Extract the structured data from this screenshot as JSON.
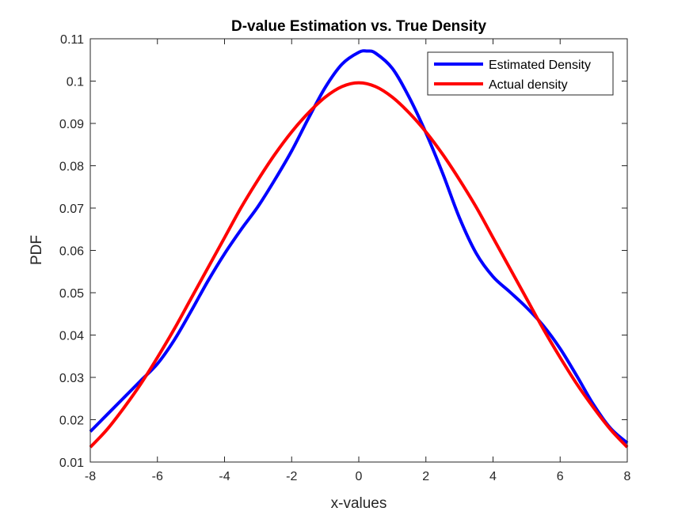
{
  "chart_data": {
    "type": "line",
    "title": "D-value Estimation vs. True Density",
    "xlabel": "x-values",
    "ylabel": "PDF",
    "xlim": [
      -8,
      8
    ],
    "ylim": [
      0.01,
      0.11
    ],
    "xticks": [
      -8,
      -6,
      -4,
      -2,
      0,
      2,
      4,
      6,
      8
    ],
    "yticks": [
      0.01,
      0.02,
      0.03,
      0.04,
      0.05,
      0.06,
      0.07,
      0.08,
      0.09,
      0.1,
      0.11
    ],
    "xtick_labels": [
      "-8",
      "-6",
      "-4",
      "-2",
      "0",
      "2",
      "4",
      "6",
      "8"
    ],
    "ytick_labels": [
      "0.01",
      "0.02",
      "0.03",
      "0.04",
      "0.05",
      "0.06",
      "0.07",
      "0.08",
      "0.09",
      "0.1",
      "0.11"
    ],
    "grid": false,
    "legend": "top-right",
    "series": [
      {
        "name": "Estimated Density",
        "color": "#0000ff",
        "x": [
          -8,
          -7.5,
          -7,
          -6.5,
          -6,
          -5.5,
          -5,
          -4.5,
          -4,
          -3.5,
          -3,
          -2.5,
          -2,
          -1.5,
          -1,
          -0.5,
          0,
          0.25,
          0.5,
          1,
          1.5,
          2,
          2.5,
          3,
          3.5,
          4,
          4.5,
          5,
          5.5,
          6,
          6.5,
          7,
          7.5,
          8
        ],
        "y": [
          0.0172,
          0.0212,
          0.0252,
          0.0292,
          0.0332,
          0.0388,
          0.0456,
          0.0527,
          0.0592,
          0.065,
          0.0704,
          0.0767,
          0.0835,
          0.0912,
          0.0985,
          0.104,
          0.1068,
          0.1071,
          0.1066,
          0.103,
          0.0962,
          0.0878,
          0.0782,
          0.0677,
          0.0593,
          0.0538,
          0.0502,
          0.0465,
          0.0422,
          0.0368,
          0.0303,
          0.0235,
          0.018,
          0.0145
        ]
      },
      {
        "name": "Actual density",
        "color": "#ff0000",
        "x": [
          -8,
          -7.5,
          -7,
          -6.5,
          -6,
          -5.5,
          -5,
          -4.5,
          -4,
          -3.5,
          -3,
          -2.5,
          -2,
          -1.5,
          -1,
          -0.5,
          0,
          0.5,
          1,
          1.5,
          2,
          2.5,
          3,
          3.5,
          4,
          4.5,
          5,
          5.5,
          6,
          6.5,
          7,
          7.5,
          8
        ],
        "y": [
          0.0135,
          0.0177,
          0.0228,
          0.0284,
          0.0347,
          0.0414,
          0.0486,
          0.0558,
          0.063,
          0.0702,
          0.0767,
          0.0827,
          0.088,
          0.0925,
          0.0962,
          0.0987,
          0.0996,
          0.0987,
          0.0962,
          0.0925,
          0.088,
          0.0827,
          0.0767,
          0.0702,
          0.063,
          0.0558,
          0.0486,
          0.0414,
          0.0347,
          0.0284,
          0.0228,
          0.0177,
          0.0135
        ]
      }
    ]
  }
}
